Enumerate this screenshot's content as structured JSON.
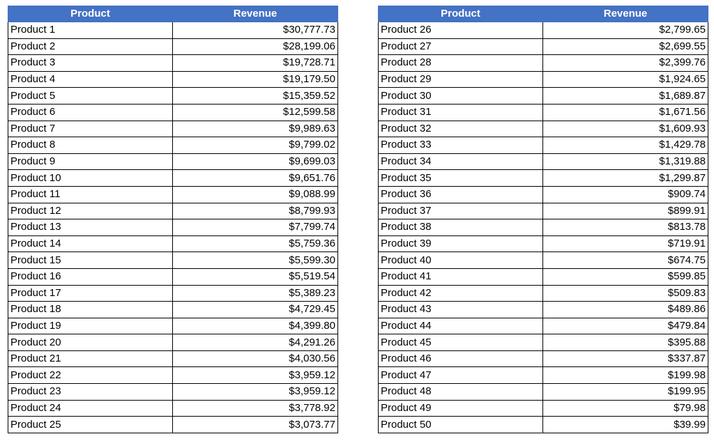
{
  "header_color": "#4472c4",
  "header_text_color": "#ffffff",
  "left_table": {
    "headers": [
      "Product",
      "Revenue"
    ],
    "rows": [
      [
        "Product 1",
        "$30,777.73"
      ],
      [
        "Product 2",
        "$28,199.06"
      ],
      [
        "Product 3",
        "$19,728.71"
      ],
      [
        "Product 4",
        "$19,179.50"
      ],
      [
        "Product 5",
        "$15,359.52"
      ],
      [
        "Product 6",
        "$12,599.58"
      ],
      [
        "Product 7",
        "$9,989.63"
      ],
      [
        "Product 8",
        "$9,799.02"
      ],
      [
        "Product 9",
        "$9,699.03"
      ],
      [
        "Product 10",
        "$9,651.76"
      ],
      [
        "Product 11",
        "$9,088.99"
      ],
      [
        "Product 12",
        "$8,799.93"
      ],
      [
        "Product 13",
        "$7,799.74"
      ],
      [
        "Product 14",
        "$5,759.36"
      ],
      [
        "Product 15",
        "$5,599.30"
      ],
      [
        "Product 16",
        "$5,519.54"
      ],
      [
        "Product 17",
        "$5,389.23"
      ],
      [
        "Product 18",
        "$4,729.45"
      ],
      [
        "Product 19",
        "$4,399.80"
      ],
      [
        "Product 20",
        "$4,291.26"
      ],
      [
        "Product 21",
        "$4,030.56"
      ],
      [
        "Product 22",
        "$3,959.12"
      ],
      [
        "Product 23",
        "$3,959.12"
      ],
      [
        "Product 24",
        "$3,778.92"
      ],
      [
        "Product 25",
        "$3,073.77"
      ]
    ]
  },
  "right_table": {
    "headers": [
      "Product",
      "Revenue"
    ],
    "rows": [
      [
        "Product 26",
        "$2,799.65"
      ],
      [
        "Product 27",
        "$2,699.55"
      ],
      [
        "Product 28",
        "$2,399.76"
      ],
      [
        "Product 29",
        "$1,924.65"
      ],
      [
        "Product 30",
        "$1,689.87"
      ],
      [
        "Product 31",
        "$1,671.56"
      ],
      [
        "Product 32",
        "$1,609.93"
      ],
      [
        "Product 33",
        "$1,429.78"
      ],
      [
        "Product 34",
        "$1,319.88"
      ],
      [
        "Product 35",
        "$1,299.87"
      ],
      [
        "Product 36",
        "$909.74"
      ],
      [
        "Product 37",
        "$899.91"
      ],
      [
        "Product 38",
        "$813.78"
      ],
      [
        "Product 39",
        "$719.91"
      ],
      [
        "Product 40",
        "$674.75"
      ],
      [
        "Product 41",
        "$599.85"
      ],
      [
        "Product 42",
        "$509.83"
      ],
      [
        "Product 43",
        "$489.86"
      ],
      [
        "Product 44",
        "$479.84"
      ],
      [
        "Product 45",
        "$395.88"
      ],
      [
        "Product 46",
        "$337.87"
      ],
      [
        "Product 47",
        "$199.98"
      ],
      [
        "Product 48",
        "$199.95"
      ],
      [
        "Product 49",
        "$79.98"
      ],
      [
        "Product 50",
        "$39.99"
      ]
    ]
  }
}
